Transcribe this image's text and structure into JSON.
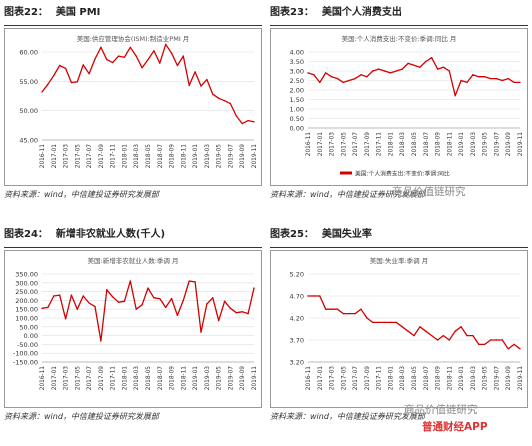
{
  "charts": [
    {
      "fig_label": "图表22：",
      "title": "美国 PMI",
      "source": "资料来源：wind，中信建投证券研究发展部",
      "chart_data": {
        "type": "line",
        "title": "美国:供应管理协会(ISM):制造业PMI 月",
        "legend": "",
        "ylim": [
          45,
          60
        ],
        "yticks": [
          "45.00",
          "50.00",
          "55.00",
          "60.00"
        ],
        "categories": [
          "2016-11",
          "2016-12",
          "2017-01",
          "2017-02",
          "2017-03",
          "2017-04",
          "2017-05",
          "2017-06",
          "2017-07",
          "2017-08",
          "2017-09",
          "2017-10",
          "2017-11",
          "2017-12",
          "2018-01",
          "2018-02",
          "2018-03",
          "2018-04",
          "2018-05",
          "2018-06",
          "2018-07",
          "2018-08",
          "2018-09",
          "2018-10",
          "2018-11",
          "2018-12",
          "2019-01",
          "2019-02",
          "2019-03",
          "2019-04",
          "2019-05",
          "2019-06",
          "2019-07",
          "2019-08",
          "2019-09",
          "2019-10",
          "2019-11"
        ],
        "xlabels": [
          "2016-11",
          "2017-01",
          "2017-03",
          "2017-05",
          "2017-07",
          "2017-09",
          "2017-11",
          "2018-01",
          "2018-03",
          "2018-05",
          "2018-07",
          "2018-09",
          "2018-11",
          "2019-01",
          "2019-03",
          "2019-05",
          "2019-07",
          "2019-09",
          "2019-11"
        ],
        "series": [
          {
            "name": "",
            "color": "#d40000",
            "values": [
              53.2,
              54.5,
              56.0,
              57.7,
              57.2,
              54.8,
              54.9,
              57.8,
              56.3,
              58.8,
              60.8,
              58.7,
              58.2,
              59.3,
              59.1,
              60.8,
              59.3,
              57.3,
              58.7,
              60.2,
              58.1,
              61.3,
              59.8,
              57.7,
              59.3,
              54.3,
              56.6,
              54.2,
              55.3,
              52.8,
              52.1,
              51.7,
              51.2,
              49.1,
              47.8,
              48.3,
              48.1
            ]
          }
        ]
      }
    },
    {
      "fig_label": "图表23：",
      "title": "美国个人消费支出",
      "source": "资料来源：wind，中信建投证券研究发展部",
      "chart_data": {
        "type": "line",
        "title": "美国:个人消费支出:不变价:季调:同比 月",
        "legend": "美国:个人消费支出:不变价:季调:同比",
        "ylim": [
          0,
          4
        ],
        "yticks": [
          "0.00",
          "0.50",
          "1.00",
          "1.50",
          "2.00",
          "2.50",
          "3.00",
          "3.50",
          "4.00"
        ],
        "categories": [
          "2016-11",
          "2016-12",
          "2017-01",
          "2017-02",
          "2017-03",
          "2017-04",
          "2017-05",
          "2017-06",
          "2017-07",
          "2017-08",
          "2017-09",
          "2017-10",
          "2017-11",
          "2017-12",
          "2018-01",
          "2018-02",
          "2018-03",
          "2018-04",
          "2018-05",
          "2018-06",
          "2018-07",
          "2018-08",
          "2018-09",
          "2018-10",
          "2018-11",
          "2018-12",
          "2019-01",
          "2019-02",
          "2019-03",
          "2019-04",
          "2019-05",
          "2019-06",
          "2019-07",
          "2019-08",
          "2019-09",
          "2019-10",
          "2019-11"
        ],
        "xlabels": [
          "2016-11",
          "2017-01",
          "2017-03",
          "2017-05",
          "2017-07",
          "2017-09",
          "2017-11",
          "2018-01",
          "2018-03",
          "2018-05",
          "2018-07",
          "2018-09",
          "2018-11",
          "2019-01",
          "2019-03",
          "2019-05",
          "2019-07",
          "2019-09",
          "2019-11"
        ],
        "series": [
          {
            "name": "美国:个人消费支出:不变价:季调:同比",
            "color": "#d40000",
            "values": [
              2.9,
              2.8,
              2.4,
              2.9,
              2.7,
              2.6,
              2.4,
              2.5,
              2.6,
              2.8,
              2.7,
              3.0,
              3.1,
              3.0,
              2.9,
              3.0,
              3.1,
              3.4,
              3.3,
              3.2,
              3.5,
              3.7,
              3.1,
              3.2,
              3.0,
              1.7,
              2.5,
              2.4,
              2.8,
              2.7,
              2.7,
              2.6,
              2.6,
              2.5,
              2.6,
              2.4,
              2.4
            ]
          }
        ]
      }
    },
    {
      "fig_label": "图表24：",
      "title": "新增非农就业人数(千人)",
      "source": "资料来源：wind，中信建投证券研究发展部",
      "chart_data": {
        "type": "line",
        "title": "美国:新增非农就业人数:季调 月",
        "legend": "",
        "ylim": [
          -150,
          350
        ],
        "yticks": [
          "-150.00",
          "-100.00",
          "-50.00",
          "0.00",
          "50.00",
          "100.00",
          "150.00",
          "200.00",
          "250.00",
          "300.00",
          "350.00"
        ],
        "categories": [
          "2016-11",
          "2016-12",
          "2017-01",
          "2017-02",
          "2017-03",
          "2017-04",
          "2017-05",
          "2017-06",
          "2017-07",
          "2017-08",
          "2017-09",
          "2017-10",
          "2017-11",
          "2017-12",
          "2018-01",
          "2018-02",
          "2018-03",
          "2018-04",
          "2018-05",
          "2018-06",
          "2018-07",
          "2018-08",
          "2018-09",
          "2018-10",
          "2018-11",
          "2018-12",
          "2019-01",
          "2019-02",
          "2019-03",
          "2019-04",
          "2019-05",
          "2019-06",
          "2019-07",
          "2019-08",
          "2019-09",
          "2019-10",
          "2019-11"
        ],
        "xlabels": [
          "2016-11",
          "2017-01",
          "2017-03",
          "2017-05",
          "2017-07",
          "2017-09",
          "2017-11",
          "2018-01",
          "2018-03",
          "2018-05",
          "2018-07",
          "2018-09",
          "2018-11",
          "2019-01",
          "2019-03",
          "2019-05",
          "2019-07",
          "2019-09",
          "2019-11"
        ],
        "series": [
          {
            "name": "",
            "color": "#d40000",
            "values": [
              155,
              160,
              225,
              230,
              95,
              230,
              150,
              225,
              185,
              165,
              -30,
              260,
              220,
              190,
              195,
              310,
              150,
              175,
              270,
              215,
              210,
              160,
              210,
              115,
              200,
              310,
              305,
              20,
              180,
              215,
              85,
              195,
              155,
              130,
              135,
              125,
              270
            ]
          }
        ]
      }
    },
    {
      "fig_label": "图表25：",
      "title": "美国失业率",
      "source": "资料来源：wind，中信建投证券研究发展部",
      "chart_data": {
        "type": "line",
        "title": "美国:失业率:季调 月",
        "legend": "",
        "ylim": [
          3.2,
          5.2
        ],
        "yticks": [
          "3.20",
          "3.70",
          "4.20",
          "4.70",
          "5.20"
        ],
        "categories": [
          "2016-11",
          "2016-12",
          "2017-01",
          "2017-02",
          "2017-03",
          "2017-04",
          "2017-05",
          "2017-06",
          "2017-07",
          "2017-08",
          "2017-09",
          "2017-10",
          "2017-11",
          "2017-12",
          "2018-01",
          "2018-02",
          "2018-03",
          "2018-04",
          "2018-05",
          "2018-06",
          "2018-07",
          "2018-08",
          "2018-09",
          "2018-10",
          "2018-11",
          "2018-12",
          "2019-01",
          "2019-02",
          "2019-03",
          "2019-04",
          "2019-05",
          "2019-06",
          "2019-07",
          "2019-08",
          "2019-09",
          "2019-10",
          "2019-11"
        ],
        "xlabels": [
          "2016-11",
          "2017-01",
          "2017-03",
          "2017-05",
          "2017-07",
          "2017-09",
          "2017-11",
          "2018-01",
          "2018-03",
          "2018-05",
          "2018-07",
          "2018-09",
          "2018-11",
          "2019-01",
          "2019-03",
          "2019-05",
          "2019-07",
          "2019-09",
          "2019-11"
        ],
        "series": [
          {
            "name": "",
            "color": "#d40000",
            "values": [
              4.7,
              4.7,
              4.7,
              4.4,
              4.4,
              4.4,
              4.3,
              4.3,
              4.3,
              4.4,
              4.2,
              4.1,
              4.1,
              4.1,
              4.1,
              4.1,
              4.0,
              3.9,
              3.8,
              4.0,
              3.9,
              3.8,
              3.7,
              3.8,
              3.7,
              3.9,
              4.0,
              3.8,
              3.8,
              3.6,
              3.6,
              3.7,
              3.7,
              3.7,
              3.5,
              3.6,
              3.5
            ]
          }
        ]
      }
    }
  ],
  "watermarks": [
    "商品价值链研究",
    "商品价值链研究",
    "普通财经APP"
  ]
}
